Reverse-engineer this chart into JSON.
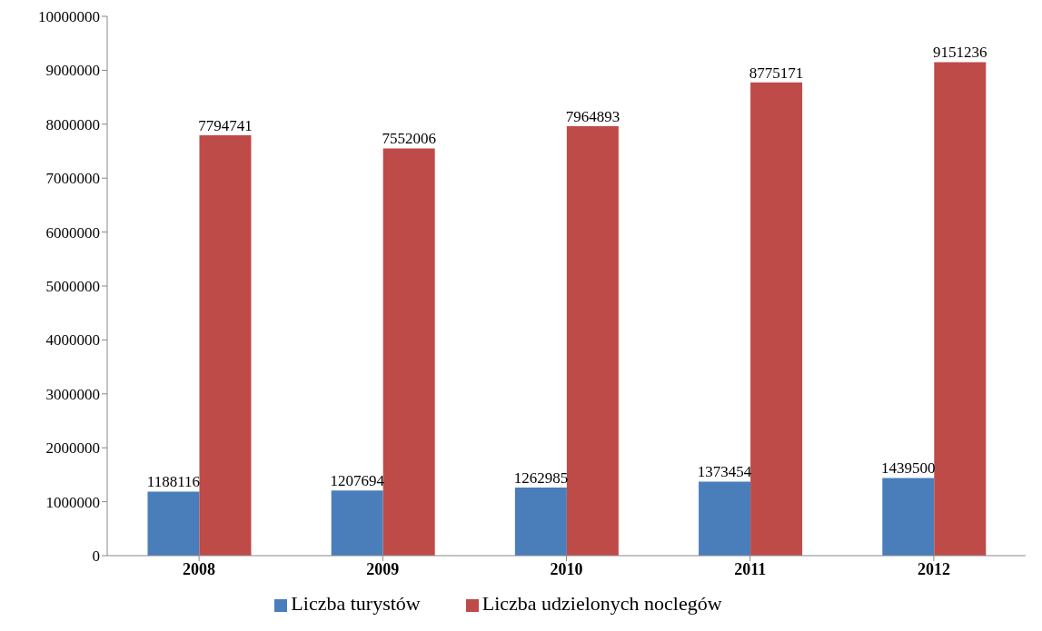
{
  "chart_data": {
    "type": "bar",
    "categories": [
      "2008",
      "2009",
      "2010",
      "2011",
      "2012"
    ],
    "series": [
      {
        "name": "Liczba turystów",
        "color": "#4a7ebb",
        "values": [
          1188116,
          1207694,
          1262985,
          1373454,
          1439500
        ]
      },
      {
        "name": "Liczba udzielonych noclegów",
        "color": "#be4b48",
        "values": [
          7794741,
          7552006,
          7964893,
          8775171,
          9151236
        ]
      }
    ],
    "ylim": [
      0,
      10000000
    ],
    "yticks": [
      0,
      1000000,
      2000000,
      3000000,
      4000000,
      5000000,
      6000000,
      7000000,
      8000000,
      9000000,
      10000000
    ],
    "grid": false,
    "legend": "bottom",
    "data_labels": true
  }
}
